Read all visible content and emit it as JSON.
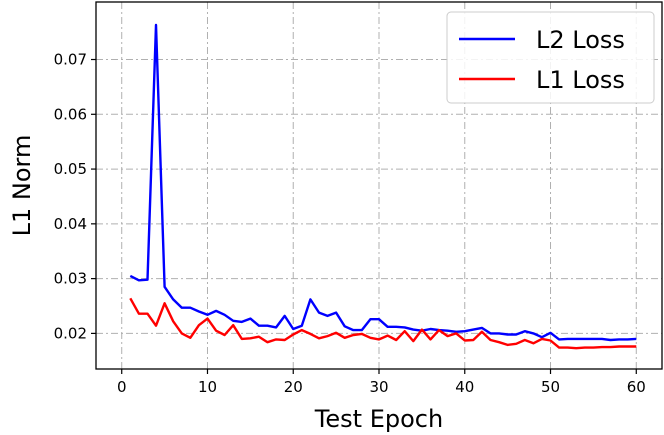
{
  "chart_data": {
    "type": "line",
    "title": "",
    "xlabel": "Test Epoch",
    "ylabel": "L1 Norm",
    "xlim": [
      -3,
      63
    ],
    "ylim": [
      0.0135,
      0.0805
    ],
    "xticks": [
      0,
      10,
      20,
      30,
      40,
      50,
      60
    ],
    "yticks": [
      0.02,
      0.03,
      0.04,
      0.05,
      0.06,
      0.07
    ],
    "ytick_labels": [
      "0.02",
      "0.03",
      "0.04",
      "0.05",
      "0.06",
      "0.07"
    ],
    "grid": true,
    "legend_position": "top-right",
    "x": [
      1,
      2,
      3,
      4,
      5,
      6,
      7,
      8,
      9,
      10,
      11,
      12,
      13,
      14,
      15,
      16,
      17,
      18,
      19,
      20,
      21,
      22,
      23,
      24,
      25,
      26,
      27,
      28,
      29,
      30,
      31,
      32,
      33,
      34,
      35,
      36,
      37,
      38,
      39,
      40,
      41,
      42,
      43,
      44,
      45,
      46,
      47,
      48,
      49,
      50,
      51,
      52,
      53,
      54,
      55,
      56,
      57,
      58,
      59,
      60
    ],
    "series": [
      {
        "name": "L2 Loss",
        "color": "#0000ff",
        "values": [
          0.0305,
          0.0297,
          0.0298,
          0.0763,
          0.0285,
          0.0262,
          0.0247,
          0.0247,
          0.024,
          0.0234,
          0.0241,
          0.0234,
          0.0223,
          0.0221,
          0.0227,
          0.0214,
          0.0214,
          0.0211,
          0.0232,
          0.0208,
          0.0214,
          0.0262,
          0.0238,
          0.0232,
          0.0238,
          0.0213,
          0.0206,
          0.0206,
          0.0226,
          0.0226,
          0.0212,
          0.0212,
          0.0211,
          0.0207,
          0.0205,
          0.0208,
          0.0206,
          0.0205,
          0.0203,
          0.0204,
          0.0207,
          0.021,
          0.02,
          0.02,
          0.0198,
          0.0198,
          0.0204,
          0.02,
          0.0193,
          0.0201,
          0.0189,
          0.019,
          0.019,
          0.019,
          0.019,
          0.019,
          0.0188,
          0.0189,
          0.0189,
          0.019
        ]
      },
      {
        "name": "L1 Loss",
        "color": "#ff0000",
        "values": [
          0.0264,
          0.0236,
          0.0236,
          0.0214,
          0.0255,
          0.0222,
          0.02,
          0.0192,
          0.0215,
          0.0227,
          0.0205,
          0.0197,
          0.0215,
          0.019,
          0.0191,
          0.0194,
          0.0184,
          0.0189,
          0.0188,
          0.0198,
          0.0206,
          0.0199,
          0.0191,
          0.0195,
          0.0201,
          0.0192,
          0.0197,
          0.0199,
          0.0192,
          0.0189,
          0.0196,
          0.0188,
          0.0204,
          0.0186,
          0.0207,
          0.0189,
          0.0206,
          0.0195,
          0.02,
          0.0187,
          0.0188,
          0.0203,
          0.0188,
          0.0184,
          0.0179,
          0.0181,
          0.0188,
          0.0182,
          0.019,
          0.0187,
          0.0174,
          0.0174,
          0.0173,
          0.0174,
          0.0174,
          0.0175,
          0.0175,
          0.0176,
          0.0176,
          0.0176
        ]
      }
    ]
  }
}
